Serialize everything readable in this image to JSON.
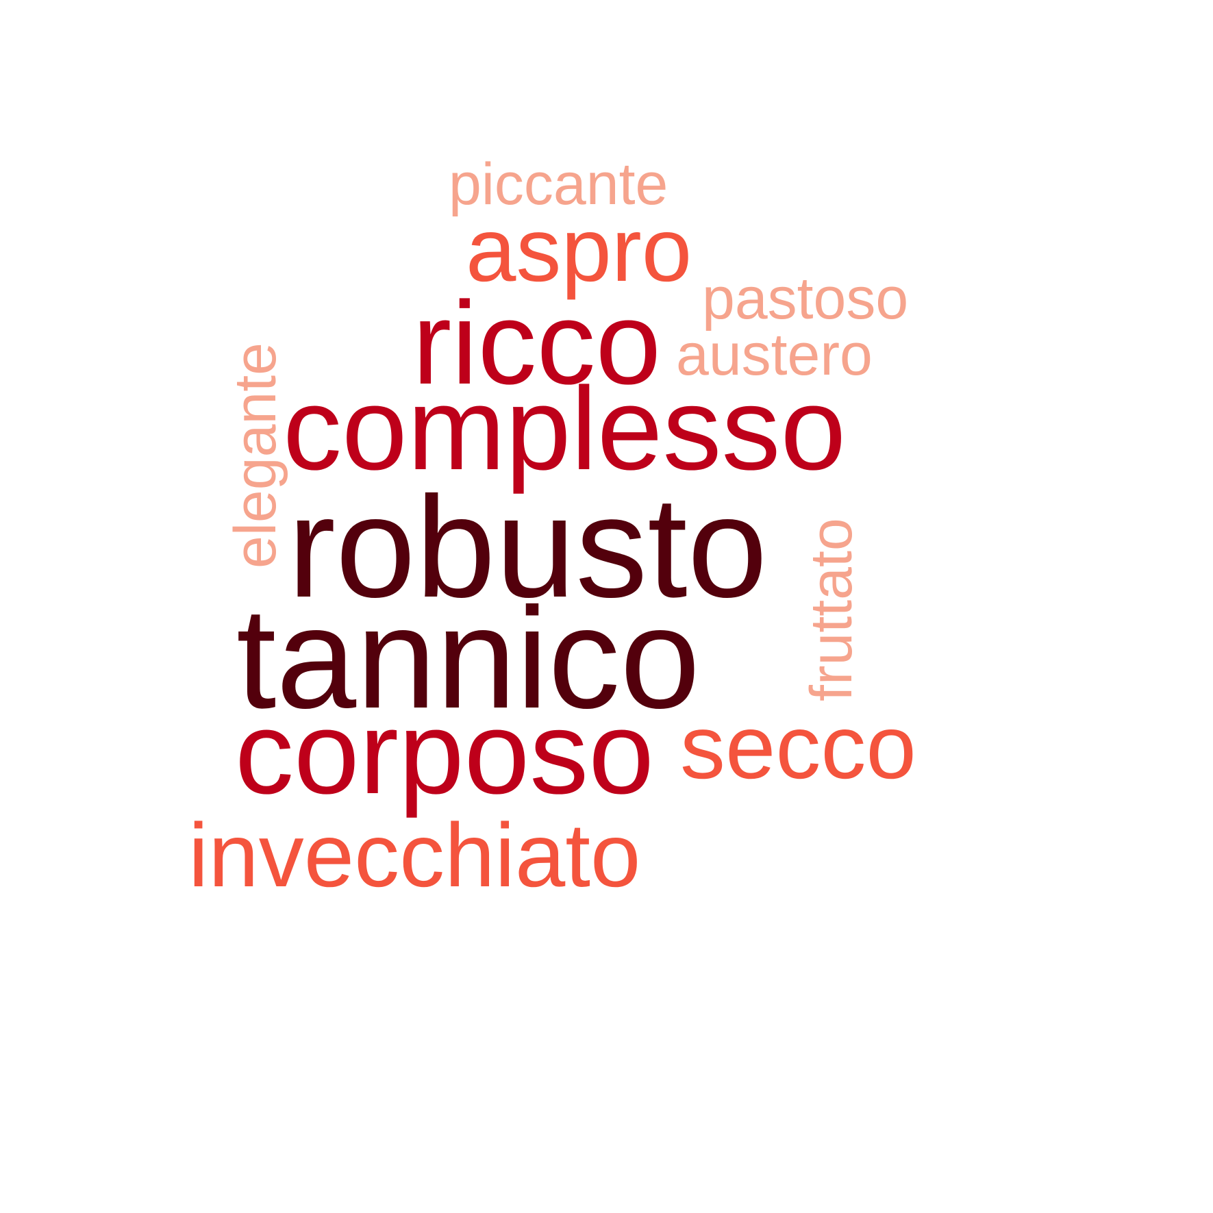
{
  "words": [
    {
      "id": "piccante",
      "text": "piccante",
      "color": "#F6A48D"
    },
    {
      "id": "aspro",
      "text": "aspro",
      "color": "#F4543D"
    },
    {
      "id": "pastoso",
      "text": "pastoso",
      "color": "#F6A48D"
    },
    {
      "id": "ricco",
      "text": "ricco",
      "color": "#BE001A"
    },
    {
      "id": "austero",
      "text": "austero",
      "color": "#F6A48D"
    },
    {
      "id": "elegante",
      "text": "elegante",
      "color": "#F6A48D"
    },
    {
      "id": "complesso",
      "text": "complesso",
      "color": "#BE001A"
    },
    {
      "id": "robusto",
      "text": "robusto",
      "color": "#53000C"
    },
    {
      "id": "fruttato",
      "text": "fruttato",
      "color": "#F6A48D"
    },
    {
      "id": "tannico",
      "text": "tannico",
      "color": "#53000C"
    },
    {
      "id": "corposo",
      "text": "corposo",
      "color": "#BE001A"
    },
    {
      "id": "secco",
      "text": "secco",
      "color": "#F4543D"
    },
    {
      "id": "invecchiato",
      "text": "invecchiato",
      "color": "#F4543D"
    }
  ]
}
